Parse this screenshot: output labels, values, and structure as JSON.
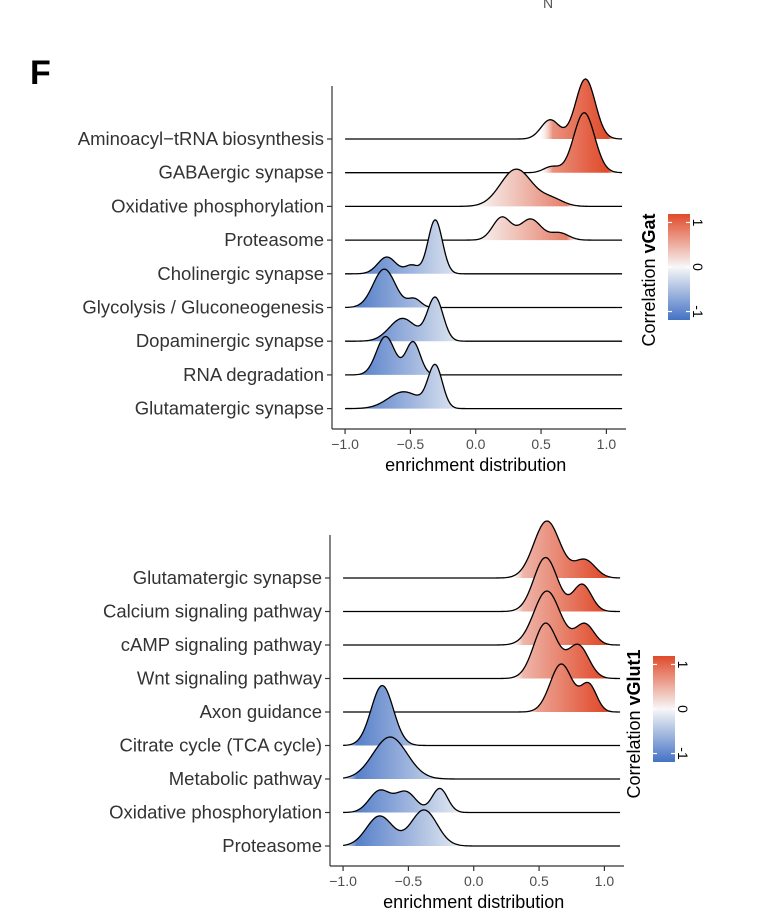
{
  "panel_label": "F",
  "stray_mark": "N",
  "colors": {
    "low": "#4472c4",
    "mid": "#f7f7f7",
    "high": "#e04a2a",
    "line": "#000000",
    "axis": "#333333"
  },
  "chart_data": [
    {
      "type": "ridgeline",
      "title": "",
      "xlabel": "enrichment distribution",
      "xlim": [
        -1.1,
        1.15
      ],
      "xticks": [
        -1.0,
        -0.5,
        0.0,
        0.5,
        1.0
      ],
      "xtick_labels": [
        "−1.0",
        "−0.5",
        "0.0",
        "0.5",
        "1.0"
      ],
      "legend": {
        "title_prefix": "Correlation ",
        "title_bold": "vGat",
        "ticks": [
          "1",
          "0",
          "-1"
        ],
        "range": [
          -1,
          1
        ],
        "placement": "right"
      },
      "series": [
        {
          "name": "Aminoacyl−tRNA biosynthesis",
          "x_range": [
            -1.0,
            1.12
          ],
          "color_range": [
            0.5,
            1.1
          ],
          "peaks": [
            {
              "mu": 0.84,
              "sd": 0.075,
              "h": 1.0
            },
            {
              "mu": 0.57,
              "sd": 0.07,
              "h": 0.32
            }
          ]
        },
        {
          "name": "GABAergic synapse",
          "x_range": [
            -1.0,
            1.12
          ],
          "color_range": [
            0.5,
            1.1
          ],
          "peaks": [
            {
              "mu": 0.83,
              "sd": 0.08,
              "h": 1.0
            },
            {
              "mu": 0.58,
              "sd": 0.06,
              "h": 0.1
            }
          ]
        },
        {
          "name": "Oxidative phosphorylation",
          "x_range": [
            -1.0,
            1.12
          ],
          "color_range": [
            0.05,
            0.75
          ],
          "peaks": [
            {
              "mu": 0.31,
              "sd": 0.12,
              "h": 0.62
            },
            {
              "mu": 0.58,
              "sd": 0.09,
              "h": 0.12
            }
          ]
        },
        {
          "name": "Proteasome",
          "x_range": [
            -1.0,
            1.12
          ],
          "color_range": [
            0.05,
            0.75
          ],
          "peaks": [
            {
              "mu": 0.2,
              "sd": 0.07,
              "h": 0.38
            },
            {
              "mu": 0.42,
              "sd": 0.08,
              "h": 0.35
            },
            {
              "mu": 0.64,
              "sd": 0.07,
              "h": 0.12
            }
          ]
        },
        {
          "name": "Cholinergic synapse",
          "x_range": [
            -1.0,
            1.12
          ],
          "color_range": [
            -1.0,
            -0.15
          ],
          "peaks": [
            {
              "mu": -0.31,
              "sd": 0.055,
              "h": 0.9
            },
            {
              "mu": -0.68,
              "sd": 0.07,
              "h": 0.28
            },
            {
              "mu": -0.49,
              "sd": 0.05,
              "h": 0.14
            }
          ]
        },
        {
          "name": "Glycolysis / Gluconeogenesis",
          "x_range": [
            -1.0,
            1.12
          ],
          "color_range": [
            -1.0,
            -0.25
          ],
          "peaks": [
            {
              "mu": -0.7,
              "sd": 0.085,
              "h": 0.64
            },
            {
              "mu": -0.47,
              "sd": 0.05,
              "h": 0.14
            }
          ]
        },
        {
          "name": "Dopaminergic synapse",
          "x_range": [
            -1.0,
            1.12
          ],
          "color_range": [
            -1.0,
            -0.15
          ],
          "peaks": [
            {
              "mu": -0.31,
              "sd": 0.06,
              "h": 0.72
            },
            {
              "mu": -0.56,
              "sd": 0.1,
              "h": 0.38
            }
          ]
        },
        {
          "name": "RNA degradation",
          "x_range": [
            -1.0,
            1.12
          ],
          "color_range": [
            -1.0,
            -0.25
          ],
          "peaks": [
            {
              "mu": -0.69,
              "sd": 0.07,
              "h": 0.64
            },
            {
              "mu": -0.48,
              "sd": 0.055,
              "h": 0.55
            }
          ]
        },
        {
          "name": "Glutamatergic synapse",
          "x_range": [
            -1.0,
            1.12
          ],
          "color_range": [
            -1.0,
            -0.15
          ],
          "peaks": [
            {
              "mu": -0.31,
              "sd": 0.055,
              "h": 0.7
            },
            {
              "mu": -0.55,
              "sd": 0.12,
              "h": 0.28
            }
          ]
        }
      ]
    },
    {
      "type": "ridgeline",
      "title": "",
      "xlabel": "enrichment distribution",
      "xlim": [
        -1.1,
        1.15
      ],
      "xticks": [
        -1.0,
        -0.5,
        0.0,
        0.5,
        1.0
      ],
      "xtick_labels": [
        "−1.0",
        "−0.5",
        "0.0",
        "0.5",
        "1.0"
      ],
      "legend": {
        "title_prefix": "Correlation ",
        "title_bold": "vGlut1",
        "ticks": [
          "1",
          "0",
          "-1"
        ],
        "range": [
          -1,
          1
        ],
        "placement": "right"
      },
      "series": [
        {
          "name": "Glutamatergic synapse",
          "x_range": [
            -1.0,
            1.12
          ],
          "color_range": [
            0.28,
            1.05
          ],
          "peaks": [
            {
              "mu": 0.56,
              "sd": 0.1,
              "h": 0.95
            },
            {
              "mu": 0.85,
              "sd": 0.08,
              "h": 0.3
            }
          ]
        },
        {
          "name": "Calcium signaling pathway",
          "x_range": [
            -1.0,
            1.12
          ],
          "color_range": [
            0.28,
            1.05
          ],
          "peaks": [
            {
              "mu": 0.55,
              "sd": 0.09,
              "h": 0.9
            },
            {
              "mu": 0.83,
              "sd": 0.07,
              "h": 0.45
            }
          ]
        },
        {
          "name": "cAMP signaling pathway",
          "x_range": [
            -1.0,
            1.12
          ],
          "color_range": [
            0.28,
            1.05
          ],
          "peaks": [
            {
              "mu": 0.56,
              "sd": 0.1,
              "h": 0.9
            },
            {
              "mu": 0.85,
              "sd": 0.07,
              "h": 0.35
            }
          ]
        },
        {
          "name": "Wnt signaling pathway",
          "x_range": [
            -1.0,
            1.12
          ],
          "color_range": [
            0.28,
            1.05
          ],
          "peaks": [
            {
              "mu": 0.55,
              "sd": 0.09,
              "h": 0.92
            },
            {
              "mu": 0.8,
              "sd": 0.08,
              "h": 0.55
            }
          ]
        },
        {
          "name": "Axon guidance",
          "x_range": [
            -1.0,
            1.12
          ],
          "color_range": [
            0.4,
            1.05
          ],
          "peaks": [
            {
              "mu": 0.67,
              "sd": 0.085,
              "h": 0.8
            },
            {
              "mu": 0.88,
              "sd": 0.06,
              "h": 0.45
            }
          ]
        },
        {
          "name": "Citrate cycle (TCA cycle)",
          "x_range": [
            -1.0,
            1.12
          ],
          "color_range": [
            -1.0,
            -0.35
          ],
          "peaks": [
            {
              "mu": -0.7,
              "sd": 0.085,
              "h": 1.0
            }
          ]
        },
        {
          "name": "Metabolic pathway",
          "x_range": [
            -1.0,
            1.12
          ],
          "color_range": [
            -1.0,
            -0.25
          ],
          "peaks": [
            {
              "mu": -0.64,
              "sd": 0.13,
              "h": 0.7
            }
          ]
        },
        {
          "name": "Oxidative phosphorylation",
          "x_range": [
            -1.0,
            1.12
          ],
          "color_range": [
            -1.0,
            -0.1
          ],
          "peaks": [
            {
              "mu": -0.72,
              "sd": 0.08,
              "h": 0.36
            },
            {
              "mu": -0.52,
              "sd": 0.08,
              "h": 0.34
            },
            {
              "mu": -0.26,
              "sd": 0.06,
              "h": 0.4
            }
          ]
        },
        {
          "name": "Proteasome",
          "x_range": [
            -1.0,
            1.12
          ],
          "color_range": [
            -1.0,
            -0.1
          ],
          "peaks": [
            {
              "mu": -0.72,
              "sd": 0.1,
              "h": 0.5
            },
            {
              "mu": -0.38,
              "sd": 0.1,
              "h": 0.6
            }
          ]
        }
      ]
    }
  ]
}
